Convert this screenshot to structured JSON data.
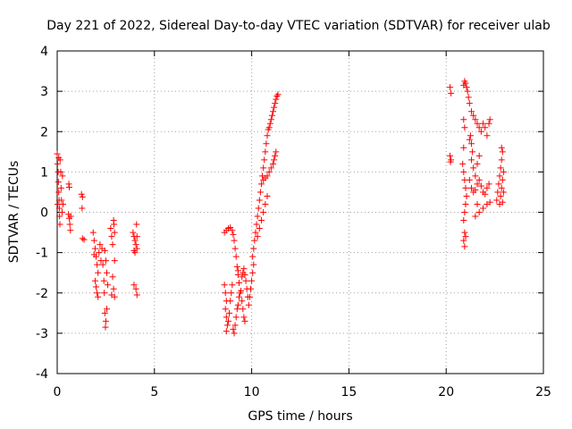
{
  "chart_data": {
    "type": "scatter",
    "title": "Day 221 of 2022, Sidereal Day-to-day VTEC variation (SDTVAR) for receiver ulab",
    "xlabel": "GPS time / hours",
    "ylabel": "SDTVAR / TECUs",
    "xlim": [
      0,
      25
    ],
    "ylim": [
      -4,
      4
    ],
    "xticks": [
      0,
      5,
      10,
      15,
      20,
      25
    ],
    "xtick_labels": [
      "0",
      "5",
      "10",
      "15",
      "20",
      "25"
    ],
    "yticks": [
      -4,
      -3,
      -2,
      -1,
      0,
      1,
      2,
      3,
      4
    ],
    "ytick_labels": [
      "-4",
      "-3",
      "-2",
      "-1",
      "0",
      "1",
      "2",
      "3",
      "4"
    ],
    "grid": true,
    "marker": "+",
    "color": "#ff0000",
    "series": [
      {
        "name": "SDTVAR",
        "points": [
          [
            0.0,
            1.45
          ],
          [
            0.02,
            1.2
          ],
          [
            0.05,
            1.0
          ],
          [
            0.06,
            0.75
          ],
          [
            0.08,
            0.5
          ],
          [
            0.1,
            0.3
          ],
          [
            0.11,
            0.1
          ],
          [
            0.12,
            -0.1
          ],
          [
            0.14,
            -0.3
          ],
          [
            0.03,
            0.2
          ],
          [
            0.15,
            1.3
          ],
          [
            0.18,
            1.0
          ],
          [
            0.2,
            0.6
          ],
          [
            0.22,
            0.3
          ],
          [
            0.25,
            0.0
          ],
          [
            0.27,
            0.9
          ],
          [
            0.3,
            0.2
          ],
          [
            0.08,
            1.35
          ],
          [
            0.6,
            0.7
          ],
          [
            0.62,
            0.62
          ],
          [
            0.58,
            -0.05
          ],
          [
            0.62,
            -0.15
          ],
          [
            0.65,
            -0.3
          ],
          [
            0.68,
            -0.45
          ],
          [
            0.7,
            -0.1
          ],
          [
            1.25,
            0.45
          ],
          [
            1.3,
            0.38
          ],
          [
            1.28,
            0.1
          ],
          [
            1.3,
            -0.65
          ],
          [
            1.38,
            -0.68
          ],
          [
            1.85,
            -0.5
          ],
          [
            1.9,
            -0.7
          ],
          [
            1.95,
            -0.9
          ],
          [
            2.0,
            -1.1
          ],
          [
            2.05,
            -1.3
          ],
          [
            2.1,
            -1.5
          ],
          [
            2.15,
            -1.0
          ],
          [
            2.2,
            -0.8
          ],
          [
            1.95,
            -1.7
          ],
          [
            2.0,
            -1.85
          ],
          [
            2.05,
            -2.0
          ],
          [
            2.1,
            -2.1
          ],
          [
            2.25,
            -1.2
          ],
          [
            2.3,
            -0.9
          ],
          [
            1.9,
            -1.05
          ],
          [
            2.35,
            -1.3
          ],
          [
            2.4,
            -1.7
          ],
          [
            2.42,
            -2.0
          ],
          [
            2.45,
            -2.5
          ],
          [
            2.5,
            -2.7
          ],
          [
            2.48,
            -2.85
          ],
          [
            2.55,
            -2.4
          ],
          [
            2.6,
            -1.8
          ],
          [
            2.45,
            -0.95
          ],
          [
            2.5,
            -1.2
          ],
          [
            2.55,
            -1.5
          ],
          [
            2.75,
            -0.4
          ],
          [
            2.8,
            -0.6
          ],
          [
            2.85,
            -0.8
          ],
          [
            2.9,
            -0.2
          ],
          [
            2.92,
            -0.3
          ],
          [
            2.95,
            -1.2
          ],
          [
            2.85,
            -1.6
          ],
          [
            2.9,
            -1.9
          ],
          [
            2.95,
            -2.1
          ],
          [
            2.8,
            -2.05
          ],
          [
            2.95,
            -0.5
          ],
          [
            3.9,
            -0.5
          ],
          [
            3.95,
            -0.6
          ],
          [
            4.0,
            -0.7
          ],
          [
            4.05,
            -0.8
          ],
          [
            4.1,
            -0.9
          ],
          [
            4.0,
            -1.0
          ],
          [
            3.95,
            -0.95
          ],
          [
            4.08,
            -0.3
          ],
          [
            4.1,
            -0.6
          ],
          [
            3.95,
            -1.8
          ],
          [
            4.05,
            -1.9
          ],
          [
            4.1,
            -2.05
          ],
          [
            8.6,
            -0.5
          ],
          [
            8.7,
            -0.45
          ],
          [
            8.8,
            -0.4
          ],
          [
            8.9,
            -0.38
          ],
          [
            9.0,
            -0.45
          ],
          [
            9.05,
            -0.55
          ],
          [
            9.1,
            -0.7
          ],
          [
            9.15,
            -0.9
          ],
          [
            9.2,
            -1.1
          ],
          [
            9.25,
            -1.35
          ],
          [
            9.3,
            -1.55
          ],
          [
            9.35,
            -1.75
          ],
          [
            9.3,
            -1.45
          ],
          [
            8.6,
            -1.8
          ],
          [
            8.65,
            -2.0
          ],
          [
            8.7,
            -2.2
          ],
          [
            8.65,
            -2.4
          ],
          [
            8.7,
            -2.6
          ],
          [
            8.75,
            -2.8
          ],
          [
            8.7,
            -2.95
          ],
          [
            8.8,
            -2.7
          ],
          [
            8.85,
            -2.5
          ],
          [
            8.9,
            -2.2
          ],
          [
            8.95,
            -2.0
          ],
          [
            9.0,
            -1.8
          ],
          [
            9.05,
            -2.9
          ],
          [
            9.1,
            -3.0
          ],
          [
            9.15,
            -2.8
          ],
          [
            9.2,
            -2.6
          ],
          [
            9.25,
            -2.4
          ],
          [
            9.3,
            -2.3
          ],
          [
            9.35,
            -2.1
          ],
          [
            9.4,
            -2.0
          ],
          [
            9.45,
            -1.95
          ],
          [
            9.5,
            -2.2
          ],
          [
            9.55,
            -2.4
          ],
          [
            9.6,
            -2.6
          ],
          [
            9.65,
            -2.7
          ],
          [
            9.5,
            -1.6
          ],
          [
            9.55,
            -1.5
          ],
          [
            9.6,
            -1.4
          ],
          [
            9.65,
            -1.55
          ],
          [
            9.7,
            -1.7
          ],
          [
            9.75,
            -1.9
          ],
          [
            9.8,
            -2.1
          ],
          [
            9.85,
            -2.3
          ],
          [
            9.9,
            -2.1
          ],
          [
            9.95,
            -1.9
          ],
          [
            10.0,
            -1.7
          ],
          [
            10.05,
            -1.5
          ],
          [
            10.1,
            -1.3
          ],
          [
            10.05,
            -1.1
          ],
          [
            10.1,
            -0.9
          ],
          [
            10.15,
            -0.7
          ],
          [
            10.2,
            -0.5
          ],
          [
            10.25,
            -0.3
          ],
          [
            10.3,
            -0.1
          ],
          [
            10.35,
            0.1
          ],
          [
            10.4,
            0.3
          ],
          [
            10.45,
            0.5
          ],
          [
            10.5,
            0.7
          ],
          [
            10.55,
            0.9
          ],
          [
            10.6,
            1.1
          ],
          [
            10.65,
            1.3
          ],
          [
            10.7,
            1.5
          ],
          [
            10.75,
            1.7
          ],
          [
            10.8,
            1.9
          ],
          [
            10.85,
            2.05
          ],
          [
            10.9,
            2.1
          ],
          [
            10.95,
            2.2
          ],
          [
            11.0,
            2.3
          ],
          [
            11.05,
            2.4
          ],
          [
            11.1,
            2.5
          ],
          [
            11.15,
            2.6
          ],
          [
            11.2,
            2.7
          ],
          [
            11.25,
            2.8
          ],
          [
            11.3,
            2.88
          ],
          [
            11.35,
            2.92
          ],
          [
            10.6,
            0.8
          ],
          [
            10.7,
            0.85
          ],
          [
            10.8,
            0.9
          ],
          [
            10.9,
            1.0
          ],
          [
            11.0,
            1.1
          ],
          [
            11.1,
            1.2
          ],
          [
            11.15,
            1.3
          ],
          [
            11.2,
            1.4
          ],
          [
            11.25,
            1.5
          ],
          [
            10.3,
            -0.6
          ],
          [
            10.4,
            -0.4
          ],
          [
            10.5,
            -0.2
          ],
          [
            10.6,
            0.0
          ],
          [
            10.7,
            0.2
          ],
          [
            10.8,
            0.4
          ],
          [
            20.2,
            3.1
          ],
          [
            20.25,
            2.95
          ],
          [
            20.2,
            1.4
          ],
          [
            20.22,
            1.25
          ],
          [
            20.25,
            1.3
          ],
          [
            20.9,
            3.15
          ],
          [
            20.95,
            3.25
          ],
          [
            21.0,
            3.2
          ],
          [
            21.05,
            3.1
          ],
          [
            21.1,
            3.0
          ],
          [
            21.15,
            2.85
          ],
          [
            21.2,
            2.7
          ],
          [
            21.3,
            2.5
          ],
          [
            21.4,
            2.4
          ],
          [
            21.5,
            2.3
          ],
          [
            21.6,
            2.2
          ],
          [
            21.7,
            2.1
          ],
          [
            21.8,
            2.0
          ],
          [
            21.9,
            2.2
          ],
          [
            22.0,
            2.1
          ],
          [
            22.1,
            1.9
          ],
          [
            22.2,
            2.2
          ],
          [
            22.25,
            2.3
          ],
          [
            20.9,
            2.3
          ],
          [
            20.95,
            2.1
          ],
          [
            20.9,
            1.6
          ],
          [
            20.85,
            1.2
          ],
          [
            20.9,
            1.0
          ],
          [
            20.95,
            0.8
          ],
          [
            21.0,
            0.6
          ],
          [
            21.05,
            0.4
          ],
          [
            21.0,
            0.2
          ],
          [
            20.95,
            0.0
          ],
          [
            20.9,
            -0.2
          ],
          [
            20.95,
            -0.5
          ],
          [
            20.9,
            -0.7
          ],
          [
            20.95,
            -0.85
          ],
          [
            21.0,
            -0.6
          ],
          [
            21.2,
            0.8
          ],
          [
            21.3,
            0.6
          ],
          [
            21.4,
            0.5
          ],
          [
            21.5,
            0.55
          ],
          [
            21.6,
            0.7
          ],
          [
            21.7,
            0.8
          ],
          [
            21.8,
            0.65
          ],
          [
            21.9,
            0.5
          ],
          [
            22.0,
            0.45
          ],
          [
            22.1,
            0.6
          ],
          [
            22.2,
            0.7
          ],
          [
            21.3,
            1.3
          ],
          [
            21.4,
            1.1
          ],
          [
            21.5,
            0.9
          ],
          [
            21.6,
            1.2
          ],
          [
            21.7,
            1.4
          ],
          [
            21.6,
            0.2
          ],
          [
            21.5,
            -0.1
          ],
          [
            21.7,
            0.0
          ],
          [
            21.9,
            0.1
          ],
          [
            22.1,
            0.2
          ],
          [
            22.25,
            0.25
          ],
          [
            21.3,
            1.7
          ],
          [
            21.35,
            1.5
          ],
          [
            21.2,
            1.8
          ],
          [
            21.25,
            1.9
          ],
          [
            22.6,
            0.3
          ],
          [
            22.65,
            0.5
          ],
          [
            22.7,
            0.7
          ],
          [
            22.75,
            0.9
          ],
          [
            22.8,
            1.1
          ],
          [
            22.85,
            1.3
          ],
          [
            22.9,
            1.5
          ],
          [
            22.85,
            1.6
          ],
          [
            22.75,
            0.2
          ],
          [
            22.8,
            0.4
          ],
          [
            22.85,
            0.6
          ],
          [
            22.9,
            0.8
          ],
          [
            22.95,
            1.0
          ],
          [
            22.9,
            0.25
          ],
          [
            22.95,
            0.5
          ]
        ]
      }
    ]
  }
}
